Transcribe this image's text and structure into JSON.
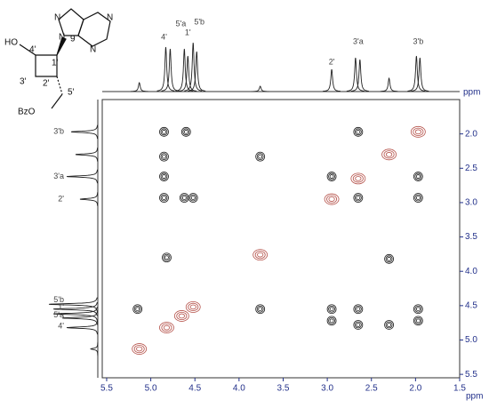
{
  "chart_data": {
    "type": "contour",
    "x_label": "ppm",
    "y_label": "ppm",
    "xlim": [
      5.55,
      1.5
    ],
    "xticks": [
      5.5,
      {
        "value": 5,
        "label": "5.0"
      },
      4.5,
      {
        "value": 4,
        "label": "4.0"
      },
      3.5,
      {
        "value": 3,
        "label": "3.0"
      },
      2.5,
      {
        "value": 2,
        "label": "2.0"
      },
      1.5
    ],
    "ylim": [
      1.5,
      5.55
    ],
    "yticks": [
      {
        "value": 2,
        "label": "2.0"
      },
      2.5,
      {
        "value": 3,
        "label": "3.0"
      },
      3.5,
      {
        "value": 4,
        "label": "4.0"
      },
      4.5,
      {
        "value": 5,
        "label": "5.0"
      },
      5.5
    ],
    "series": [
      {
        "color": "#b5524a",
        "x": [
          5.13,
          4.82,
          4.65,
          4.52,
          3.76,
          2.95,
          2.65,
          2.3,
          1.97
        ],
        "values": [
          5.13,
          4.82,
          4.65,
          4.52,
          3.76,
          2.95,
          2.65,
          2.3,
          1.97
        ]
      },
      {
        "color": "#222222",
        "x": [
          4.85,
          4.6,
          2.65,
          4.85,
          3.76,
          4.85,
          2.95,
          1.97,
          4.85,
          4.62,
          4.52,
          2.65,
          1.97,
          4.82,
          2.3,
          5.15,
          3.76,
          2.95,
          2.65,
          1.97,
          2.95,
          2.65,
          2.3,
          1.97
        ],
        "values": [
          1.97,
          1.97,
          1.97,
          2.33,
          2.33,
          2.62,
          2.62,
          2.62,
          2.93,
          2.93,
          2.93,
          2.93,
          2.93,
          3.8,
          3.82,
          4.55,
          4.55,
          4.55,
          4.55,
          4.55,
          4.72,
          4.78,
          4.78,
          4.72
        ]
      }
    ],
    "top_projection": {
      "x": [
        5.13,
        4.83,
        4.78,
        4.62,
        4.58,
        4.52,
        4.48,
        3.76,
        2.95,
        2.68,
        2.63,
        2.3,
        1.99,
        1.95
      ],
      "values": [
        10,
        50,
        48,
        48,
        40,
        55,
        45,
        6,
        25,
        38,
        36,
        15,
        40,
        38
      ],
      "peak_labels": [
        {
          "label": "4'",
          "x": 4.85
        },
        {
          "label": "5'a",
          "x": 4.66
        },
        {
          "label": "1'",
          "x": 4.58
        },
        {
          "label": "5'b",
          "x": 4.45
        },
        {
          "label": "2'",
          "x": 2.95
        },
        {
          "label": "3'a",
          "x": 2.65
        },
        {
          "label": "3'b",
          "x": 1.97
        }
      ]
    },
    "left_projection": {
      "y": [
        1.97,
        2.3,
        2.62,
        2.95,
        4.48,
        4.55,
        4.62,
        4.68,
        4.82,
        5.13
      ],
      "values": [
        30,
        25,
        35,
        20,
        55,
        50,
        50,
        40,
        35,
        8
      ],
      "peak_labels": [
        {
          "label": "3'b",
          "y": 1.97
        },
        {
          "label": "3'a",
          "y": 2.62
        },
        {
          "label": "2'",
          "y": 2.95
        },
        {
          "label": "5'b",
          "y": 4.42
        },
        {
          "label": "1'",
          "y": 4.53
        },
        {
          "label": "5'a",
          "y": 4.64
        },
        {
          "label": "4'",
          "y": 4.8
        }
      ]
    }
  },
  "molecule": {
    "labels": [
      "HO",
      "4'",
      "1'",
      "9",
      "3'",
      "2'",
      "5'",
      "BzO",
      "N",
      "N",
      "N",
      "N"
    ]
  }
}
